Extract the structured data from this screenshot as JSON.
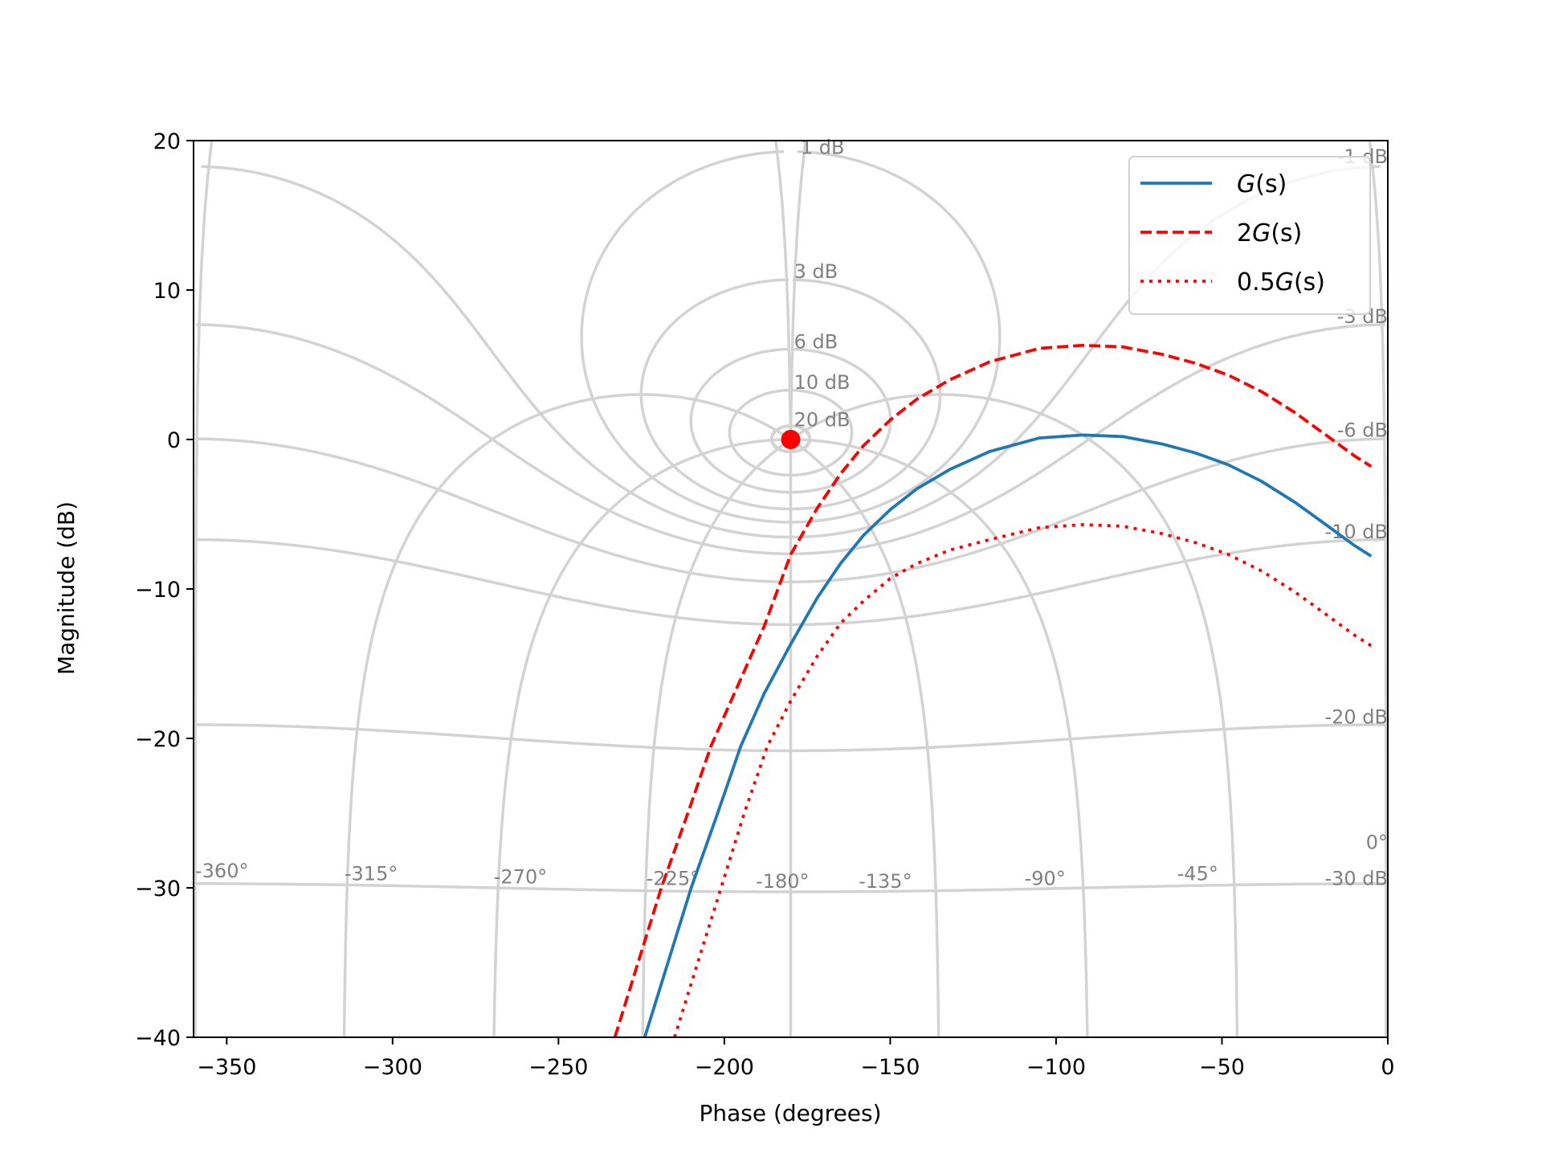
{
  "chart_data": {
    "type": "line",
    "title": "",
    "xlabel": "Phase (degrees)",
    "ylabel": "Magnitude (dB)",
    "xlim": [
      -360,
      0
    ],
    "ylim": [
      -40,
      20
    ],
    "xticks": [
      -350,
      -300,
      -250,
      -200,
      -150,
      -100,
      -50,
      0
    ],
    "xtick_labels": [
      "−350",
      "−300",
      "−250",
      "−200",
      "−150",
      "−100",
      "−50",
      "0"
    ],
    "yticks": [
      -40,
      -30,
      -20,
      -10,
      0,
      10,
      20
    ],
    "ytick_labels": [
      "−40",
      "−30",
      "−20",
      "−10",
      "0",
      "10",
      "20"
    ],
    "legend_position": "top-right",
    "critical_point": {
      "phase": -180,
      "magnitude": 0,
      "color": "#ff0000"
    },
    "grid": {
      "type": "nichols",
      "color": "#d3d3d3",
      "label_color": "#808080",
      "closed_loop_magnitudes_db": [
        20,
        10,
        6,
        3,
        1,
        -1,
        -3,
        -6,
        -10,
        -20,
        -30
      ],
      "closed_loop_magnitude_labels": [
        "20 dB",
        "10 dB",
        "6 dB",
        "3 dB",
        "1 dB",
        "-1 dB",
        "-3 dB",
        "-6 dB",
        "-10 dB",
        "-20 dB",
        "-30 dB"
      ],
      "closed_loop_phases_deg": [
        -360,
        -315,
        -270,
        -225,
        -180,
        -135,
        -90,
        -45,
        0
      ],
      "closed_loop_phase_labels": [
        "-360°",
        "-315°",
        "-270°",
        "-225°",
        "-180°",
        "-135°",
        "-90°",
        "-45°",
        "0°"
      ]
    },
    "series": [
      {
        "name": "G(s)",
        "legend_prefix": "",
        "legend_var": "G",
        "legend_suffix": "(s)",
        "color": "#1f77b4",
        "style": "solid",
        "x": [
          -224,
          -217,
          -210,
          -202,
          -195,
          -188,
          -180,
          -172,
          -165,
          -158,
          -150,
          -142,
          -132,
          -120,
          -105,
          -92,
          -80,
          -68,
          -58,
          -48,
          -38,
          -28,
          -18,
          -10,
          -5
        ],
        "y": [
          -40,
          -35,
          -30,
          -25,
          -20.5,
          -17,
          -13.7,
          -10.6,
          -8.3,
          -6.4,
          -4.7,
          -3.3,
          -2.0,
          -0.8,
          0.1,
          0.3,
          0.2,
          -0.3,
          -0.9,
          -1.7,
          -2.8,
          -4.2,
          -5.8,
          -7.1,
          -7.8
        ]
      },
      {
        "name": "2G(s)",
        "legend_prefix": "2",
        "legend_var": "G",
        "legend_suffix": "(s)",
        "color": "#ff0000",
        "style": "dashed",
        "x": [
          -233,
          -226,
          -219,
          -211,
          -204,
          -197,
          -188,
          -180,
          -172,
          -165,
          -158,
          -150,
          -142,
          -132,
          -120,
          -105,
          -92,
          -80,
          -68,
          -58,
          -48,
          -38,
          -28,
          -18,
          -10,
          -5
        ],
        "y": [
          -40,
          -35,
          -30,
          -25,
          -20.5,
          -17,
          -12.5,
          -7.7,
          -4.6,
          -2.3,
          -0.4,
          1.3,
          2.7,
          4.0,
          5.2,
          6.1,
          6.3,
          6.2,
          5.7,
          5.1,
          4.3,
          3.2,
          1.8,
          0.2,
          -1.1,
          -1.8
        ]
      },
      {
        "name": "0.5G(s)",
        "legend_prefix": "0.5",
        "legend_var": "G",
        "legend_suffix": "(s)",
        "color": "#ff0000",
        "style": "dotted",
        "x": [
          -215,
          -208,
          -201,
          -194,
          -187,
          -180,
          -172,
          -165,
          -158,
          -150,
          -142,
          -132,
          -120,
          -105,
          -92,
          -80,
          -68,
          -58,
          -48,
          -38,
          -28,
          -18,
          -10,
          -5
        ],
        "y": [
          -40,
          -35,
          -30,
          -25,
          -20.5,
          -17.5,
          -14.5,
          -12.3,
          -10.8,
          -9.3,
          -8.3,
          -7.4,
          -6.7,
          -5.9,
          -5.7,
          -5.8,
          -6.3,
          -6.9,
          -7.7,
          -8.8,
          -10.2,
          -11.8,
          -13.1,
          -13.8
        ]
      }
    ]
  }
}
